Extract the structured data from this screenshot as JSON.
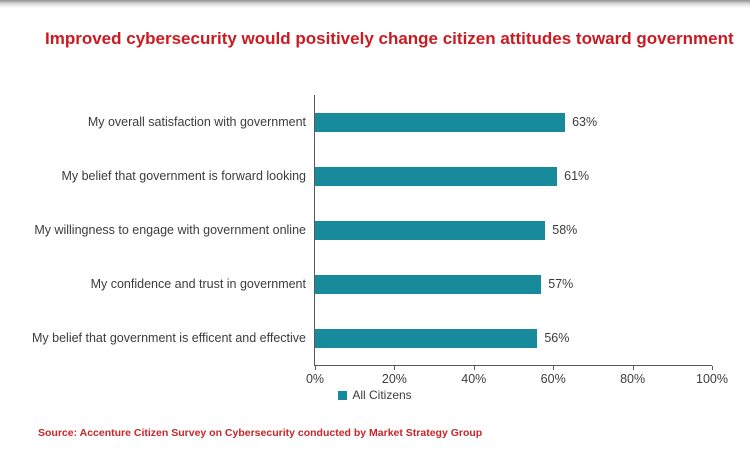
{
  "title": "Improved cybersecurity would positively change citizen attitudes toward government",
  "source_note": "Source: Accenture Citizen Survey on Cybersecurity conducted by Market Strategy Group",
  "legend": {
    "label": "All Citizens"
  },
  "colors": {
    "bar": "#178A9B",
    "title_red": "#CB1A21",
    "source_red": "#C5262C",
    "axis_gray": "#595959",
    "label_gray": "#3C3C3C"
  },
  "chart_data": {
    "type": "bar",
    "orientation": "horizontal",
    "title": "Improved cybersecurity would positively change citizen attitudes toward government",
    "categories": [
      "My overall satisfaction with government",
      "My belief that government is forward looking",
      "My willingness to engage with government online",
      "My confidence and trust in government",
      "My belief that government is efficent and effective"
    ],
    "series": [
      {
        "name": "All Citizens",
        "values": [
          63,
          61,
          58,
          57,
          56
        ]
      }
    ],
    "value_labels": [
      "63%",
      "61%",
      "58%",
      "57%",
      "56%"
    ],
    "xlim": [
      0,
      100
    ],
    "x_ticks": [
      "0%",
      "20%",
      "40%",
      "60%",
      "80%",
      "100%"
    ],
    "xlabel": "",
    "ylabel": "",
    "grid": false,
    "legend_position": "bottom-center"
  }
}
